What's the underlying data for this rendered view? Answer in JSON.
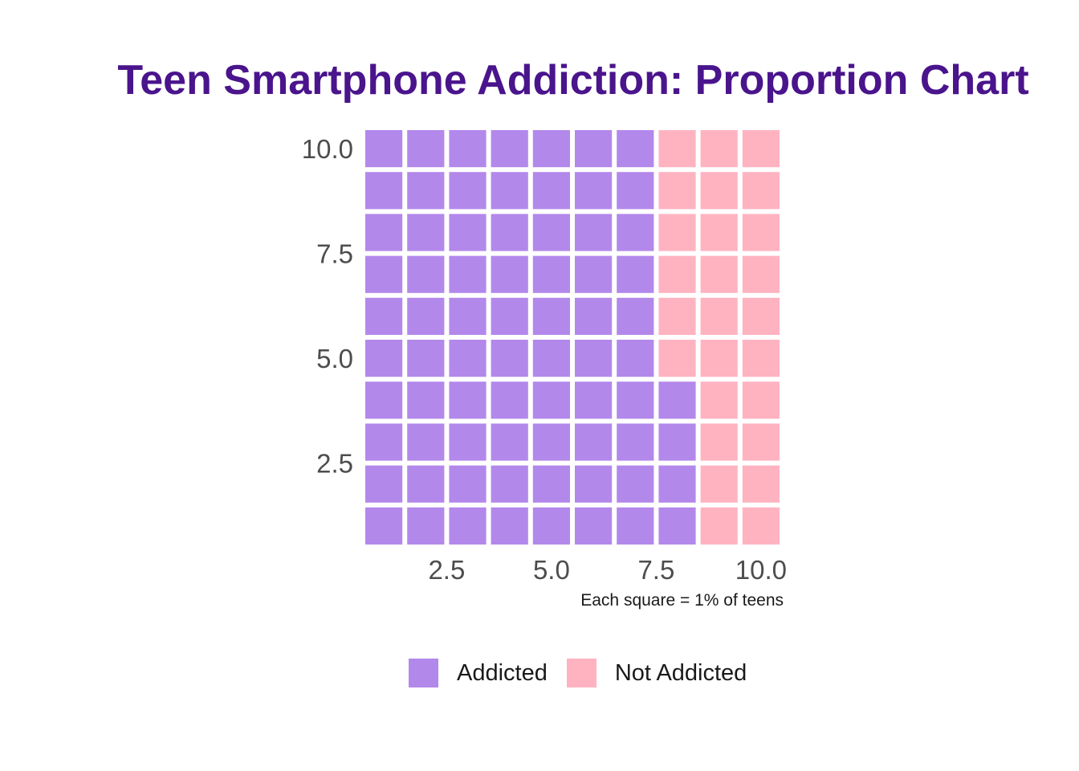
{
  "chart_data": {
    "type": "waffle",
    "title": "Teen Smartphone Addiction: Proportion Chart",
    "caption": "Each square = 1% of teens",
    "grid": {
      "columns": 10,
      "rows": 10
    },
    "xlim": [
      0.5,
      10.5
    ],
    "ylim": [
      0.5,
      10.5
    ],
    "x_ticks": [
      "2.5",
      "5.0",
      "7.5",
      "10.0"
    ],
    "x_tick_values": [
      2.5,
      5.0,
      7.5,
      10.0
    ],
    "y_ticks": [
      "2.5",
      "5.0",
      "7.5",
      "10.0"
    ],
    "y_tick_values": [
      2.5,
      5.0,
      7.5,
      10.0
    ],
    "categories": [
      {
        "name": "Addicted",
        "value": 74,
        "color": "#b388eb"
      },
      {
        "name": "Not Addicted",
        "value": 26,
        "color": "#ffb3c1"
      }
    ],
    "legend_position": "bottom",
    "fill_order": "column-wise, bottom to top, left to right"
  }
}
